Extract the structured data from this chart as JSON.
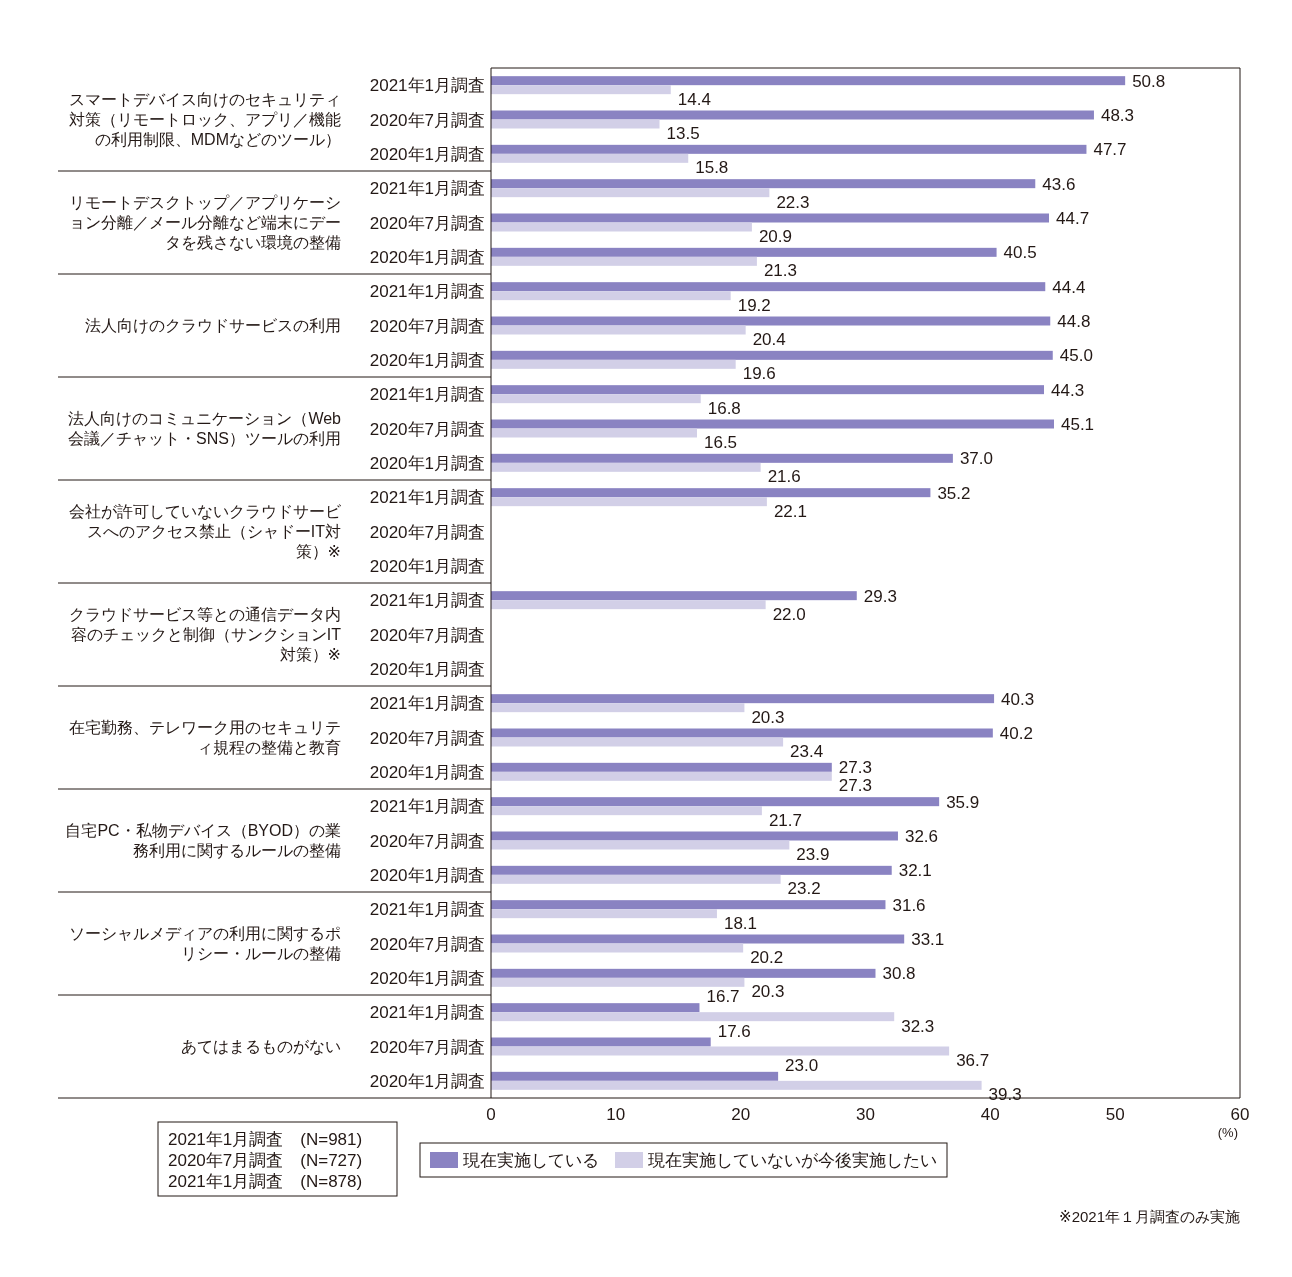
{
  "chart_data": {
    "type": "bar",
    "orientation": "horizontal",
    "xlabel": "(%)",
    "categories": [
      "2021年1月調査",
      "2020年7月調査",
      "2020年1月調査",
      "2021年1月調査",
      "2020年7月調査",
      "2020年1月調査",
      "2021年1月調査",
      "2020年7月調査",
      "2020年1月調査",
      "2021年1月調査",
      "2020年7月調査",
      "2020年1月調査",
      "2021年1月調査",
      "2020年7月調査",
      "2020年1月調査",
      "2021年1月調査",
      "2020年7月調査",
      "2020年1月調査",
      "2021年1月調査",
      "2020年7月調査",
      "2020年1月調査",
      "2021年1月調査",
      "2020年7月調査",
      "2020年1月調査",
      "2021年1月調査",
      "2020年7月調査",
      "2020年1月調査",
      "2021年1月調査",
      "2020年7月調査",
      "2020年1月調査"
    ],
    "series": [
      {
        "name": "現在実施している",
        "color": "#8a83c2",
        "values": [
          50.8,
          48.3,
          47.7,
          43.6,
          44.7,
          40.5,
          44.4,
          44.8,
          45.0,
          44.3,
          45.1,
          37.0,
          35.2,
          null,
          null,
          29.3,
          null,
          null,
          40.3,
          40.2,
          27.3,
          35.9,
          32.6,
          32.1,
          31.6,
          33.1,
          30.8,
          16.7,
          17.6,
          23.0
        ],
        "value_labels": [
          "50.8",
          "48.3",
          "47.7",
          "43.6",
          "44.7",
          "40.5",
          "44.4",
          "44.8",
          "45.0",
          "44.3",
          "45.1",
          "37.0",
          "35.2",
          null,
          null,
          "29.3",
          null,
          null,
          "40.3",
          "40.2",
          "27.3",
          "35.9",
          "32.6",
          "32.1",
          "31.6",
          "33.1",
          "30.8",
          "16.7",
          "17.6",
          "23.0"
        ]
      },
      {
        "name": "現在実施していないが今後実施したい",
        "color": "#d2cfe7",
        "values": [
          14.4,
          13.5,
          15.8,
          22.3,
          20.9,
          21.3,
          19.2,
          20.4,
          19.6,
          16.8,
          16.5,
          21.6,
          22.1,
          null,
          null,
          22.0,
          null,
          null,
          20.3,
          23.4,
          27.3,
          21.7,
          23.9,
          23.2,
          18.1,
          20.2,
          20.3,
          32.3,
          36.7,
          39.3
        ],
        "value_labels": [
          "14.4",
          "13.5",
          "15.8",
          "22.3",
          "20.9",
          "21.3",
          "19.2",
          "20.4",
          "19.6",
          "16.8",
          "16.5",
          "21.6",
          "22.1",
          null,
          null,
          "22.0",
          null,
          null,
          "20.3",
          "23.4",
          "27.3",
          "21.7",
          "23.9",
          "23.2",
          "18.1",
          "20.2",
          "20.3",
          "32.3",
          "36.7",
          "39.3"
        ]
      }
    ],
    "xlim": [
      0,
      60
    ],
    "xticks": [
      0,
      10,
      20,
      30,
      40,
      50,
      60
    ],
    "legend": "bottom",
    "grid": false,
    "annotations": [
      "スマートデバイス向けのセキュリティ対策（リモートロック、アプリ／機能の利用制限、MDMなどのツール）",
      "リモートデスクトップ／アプリケーション分離／メール分離など端末にデータを残さない環境の整備",
      "法人向けのクラウドサービスの利用",
      "法人向けのコミュニケーション（Web会議／チャット・SNS）ツールの利用",
      "会社が許可していないクラウドサービスへのアクセス禁止（シャドーIT対策）※",
      "クラウドサービス等との通信データ内容のチェックと制御（サンクションIT対策）※",
      "在宅勤務、テレワーク用のセキュリティ規程の整備と教育",
      "自宅PC・私物デバイス（BYOD）の業務利用に関するルールの整備",
      "ソーシャルメディアの利用に関するポリシー・ルールの整備",
      "あてはまるものがない",
      "2021年1月調査　(N=981)\n2020年7月調査　(N=727)\n2021年1月調査　(N=878)",
      "※2021年１月調査のみ実施"
    ]
  }
}
